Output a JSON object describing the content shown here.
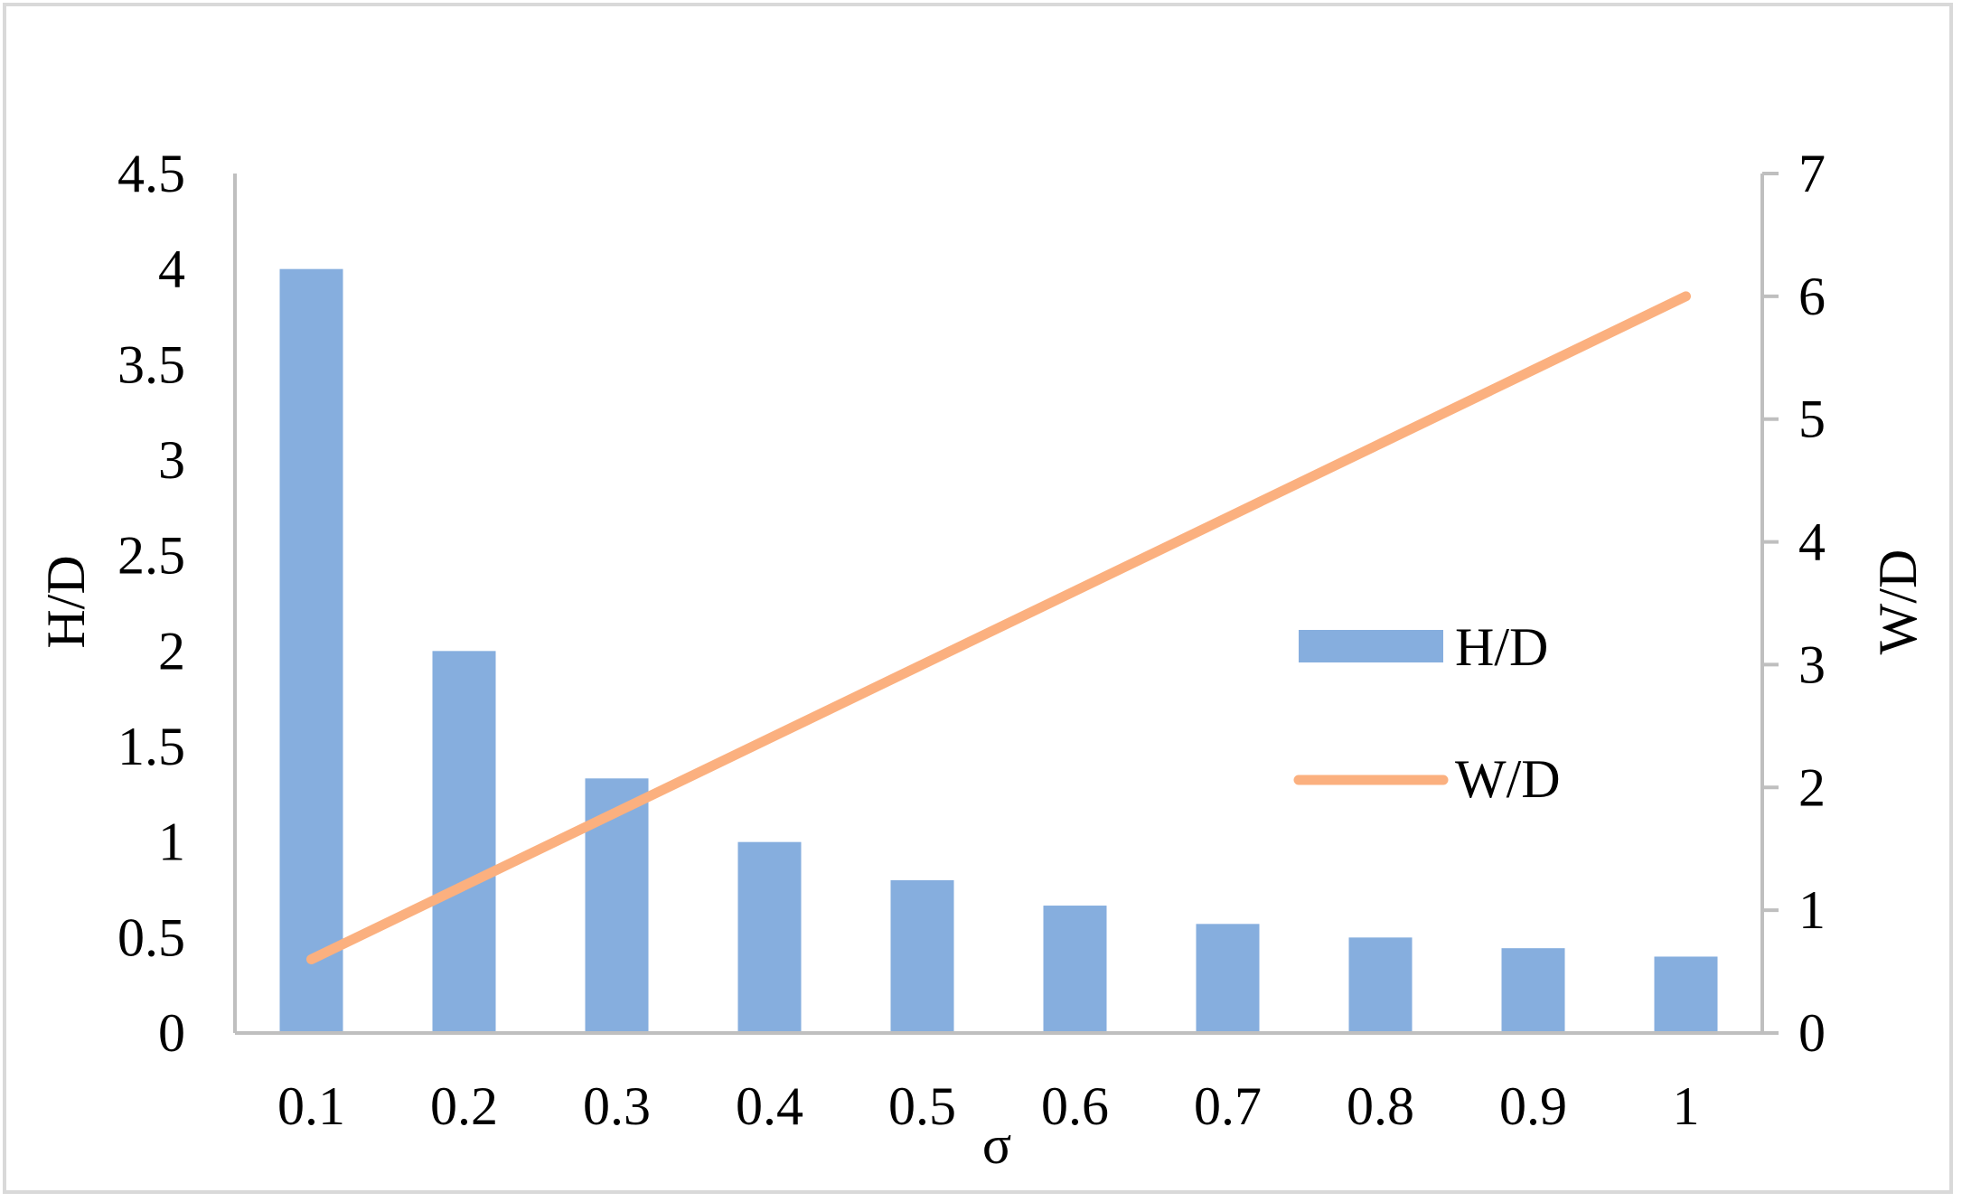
{
  "chart_data": {
    "type": "bar",
    "categories": [
      "0.1",
      "0.2",
      "0.3",
      "0.4",
      "0.5",
      "0.6",
      "0.7",
      "0.8",
      "0.9",
      "1"
    ],
    "series": [
      {
        "name": "H/D",
        "type": "bar",
        "axis": "left",
        "color": "#86aede",
        "values": [
          4.0,
          2.0,
          1.333,
          1.0,
          0.8,
          0.667,
          0.571,
          0.5,
          0.444,
          0.4
        ]
      },
      {
        "name": "W/D",
        "type": "line",
        "axis": "right",
        "color": "#fbb07f",
        "values": [
          0.6,
          1.2,
          1.8,
          2.4,
          3.0,
          3.6,
          4.2,
          4.8,
          5.4,
          6.0
        ]
      }
    ],
    "title": "",
    "xlabel": "σ",
    "ylabel": "H/D",
    "y2label": "W/D",
    "ylim": [
      0,
      4.5
    ],
    "y2lim": [
      0,
      7
    ],
    "yticks": [
      "0",
      "0.5",
      "1",
      "1.5",
      "2",
      "2.5",
      "3",
      "3.5",
      "4",
      "4.5"
    ],
    "y2ticks": [
      "0",
      "1",
      "2",
      "3",
      "4",
      "5",
      "6",
      "7"
    ],
    "legend": {
      "position": "right-middle",
      "entries": [
        "H/D",
        "W/D"
      ]
    },
    "grid": false
  }
}
